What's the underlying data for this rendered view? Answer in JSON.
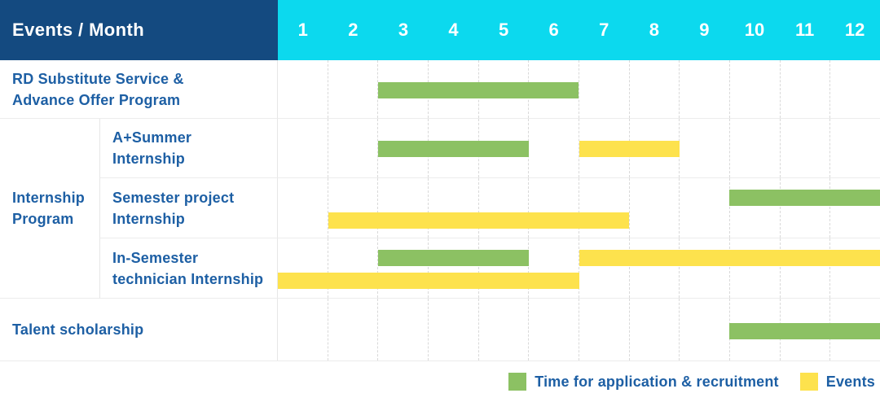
{
  "table": {
    "corner_label": "Events / Month",
    "months": [
      "1",
      "2",
      "3",
      "4",
      "5",
      "6",
      "7",
      "8",
      "9",
      "10",
      "11",
      "12"
    ]
  },
  "colors": {
    "navy_header": "#144a80",
    "cyan_header": "#0cd9ee",
    "green": "#8cc163",
    "yellow": "#fde24d",
    "label_blue": "#1d5fa4"
  },
  "chart_data": {
    "type": "table",
    "subtype": "gantt-timeline",
    "title": "Events / Month",
    "x_axis": {
      "tick_labels": [
        "1",
        "2",
        "3",
        "4",
        "5",
        "6",
        "7",
        "8",
        "9",
        "10",
        "11",
        "12"
      ],
      "range": [
        1,
        12
      ],
      "grid": "dashed-vertical"
    },
    "group_label": "Internship\nProgram",
    "rows": [
      {
        "group": null,
        "label": "RD Substitute Service &\nAdvance Offer Program",
        "bars": [
          {
            "color": "green",
            "meaning": "Time for application & recruitment",
            "start": 3,
            "end": 6,
            "line": "single"
          }
        ]
      },
      {
        "group": "Internship Program",
        "label": "A+Summer\nInternship",
        "bars": [
          {
            "color": "green",
            "meaning": "Time for application & recruitment",
            "start": 3,
            "end": 5,
            "line": "single"
          },
          {
            "color": "yellow",
            "meaning": "Events",
            "start": 7,
            "end": 8,
            "line": "single"
          }
        ]
      },
      {
        "group": "Internship Program",
        "label": "Semester project\nInternship",
        "bars": [
          {
            "color": "green",
            "meaning": "Time for application & recruitment",
            "start": 10,
            "end": 12,
            "line": "top"
          },
          {
            "color": "yellow",
            "meaning": "Events",
            "start": 2,
            "end": 7,
            "line": "bottom"
          }
        ]
      },
      {
        "group": "Internship Program",
        "label": "In-Semester\ntechnician Internship",
        "bars": [
          {
            "color": "green",
            "meaning": "Time for application & recruitment",
            "start": 3,
            "end": 5,
            "line": "top"
          },
          {
            "color": "yellow",
            "meaning": "Events",
            "start": 7,
            "end": 12,
            "line": "top"
          },
          {
            "color": "yellow",
            "meaning": "Events",
            "start": 1,
            "end": 6,
            "line": "bottom"
          }
        ]
      },
      {
        "group": null,
        "label": "Talent scholarship",
        "bars": [
          {
            "color": "green",
            "meaning": "Time for application & recruitment",
            "start": 10,
            "end": 12,
            "line": "single"
          }
        ]
      }
    ],
    "legend_position": "bottom-right"
  },
  "legend": {
    "items": [
      {
        "label": "Time for application & recruitment",
        "color": "green"
      },
      {
        "label": "Events",
        "color": "yellow"
      }
    ]
  }
}
